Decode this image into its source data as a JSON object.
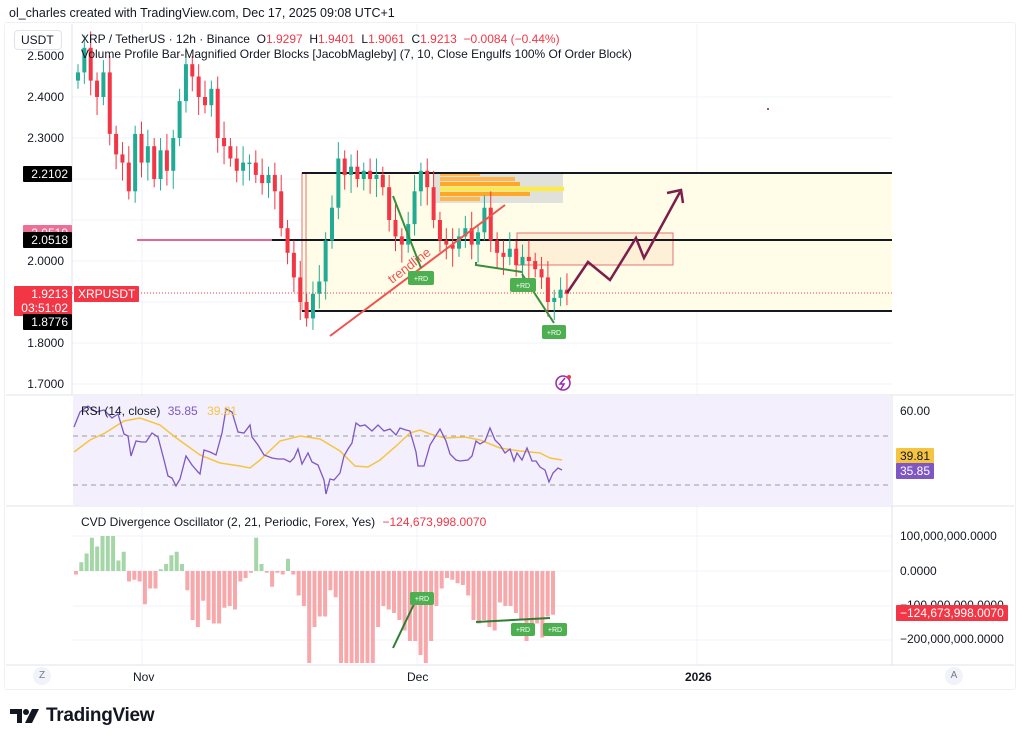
{
  "attribution": "ol_charles created with TradingView.com, Dec 17, 2025 09:08 UTC+1",
  "symbol_chip": "USDT",
  "legend": {
    "symbol": "XRP / TetherUS · 12h · Binance",
    "o_label": "O",
    "o": "1.9297",
    "h_label": "H",
    "h": "1.9401",
    "l_label": "L",
    "l": "1.9061",
    "c_label": "C",
    "c": "1.9213",
    "change": "−0.0084 (−0.44%)",
    "indicator": "Volume Profile Bar-Magnified Order Blocks [JacobMagleby] (7, 10, Close Engulfs 100% Of Order Block)"
  },
  "price_scale": {
    "ticks": [
      "2.5000",
      "2.4000",
      "2.3000",
      "2.2000",
      "2.1000",
      "2.0000",
      "1.9000",
      "1.8000",
      "1.7000"
    ],
    "labels": {
      "top_block": "2.2102",
      "pink_level": "2.0519",
      "mid_block": "2.0518",
      "last_price": "1.9213",
      "countdown": "03:51:02",
      "bottom_block": "1.8776",
      "symbol_tag": "XRPUSDT"
    }
  },
  "rsi": {
    "title": "RSI (14, close)",
    "value": "35.85",
    "ma_value": "39.81",
    "scale_top": "60.00",
    "label_ma": "39.81",
    "label_rsi": "35.85"
  },
  "cvd": {
    "title": "CVD Divergence Oscillator (2, 21, Periodic, Forex, Yes)",
    "value": "−124,673,998.0070",
    "scale": [
      "100,000,000.0000",
      "0.0000",
      "−100,000,000.0000",
      "−200,000,000.0000"
    ],
    "label": "−124,673,998.0070"
  },
  "time_axis": {
    "z": "Z",
    "nov": "Nov",
    "dec": "Dec",
    "y2026": "2026",
    "a": "A"
  },
  "annotations": {
    "trendline": "trendline",
    "rd": "+RD"
  },
  "logo": "TradingView",
  "colors": {
    "up": "#22ab94",
    "down": "#f23645",
    "rsi": "#7e57c2",
    "rsi_ma": "#f5c542",
    "forecast": "#7b1e4b",
    "rd": "#4caf50"
  },
  "chart_data": [
    {
      "type": "candlestick",
      "title": "XRP / TetherUS · 12h · Binance",
      "ylabel": "Price (USDT)",
      "ylim": [
        1.65,
        2.55
      ],
      "ohlc_last": {
        "open": 1.9297,
        "high": 1.9401,
        "low": 1.9061,
        "close": 1.9213,
        "change": -0.0084,
        "change_pct": -0.44
      },
      "approx_close_path": [
        2.46,
        2.52,
        2.44,
        2.4,
        2.46,
        2.31,
        2.26,
        2.24,
        2.17,
        2.31,
        2.24,
        2.28,
        2.2,
        2.27,
        2.22,
        2.3,
        2.39,
        2.48,
        2.45,
        2.4,
        2.38,
        2.42,
        2.3,
        2.28,
        2.25,
        2.22,
        2.24,
        2.24,
        2.21,
        2.19,
        2.21,
        2.17,
        2.08,
        2.02,
        1.96,
        1.9,
        1.86,
        1.92,
        1.95,
        2.05,
        2.13,
        2.25,
        2.21,
        2.23,
        2.2,
        2.22,
        2.2,
        2.21,
        2.18,
        2.1,
        2.06,
        2.04,
        2.09,
        2.17,
        2.22,
        2.18,
        2.1,
        2.05,
        2.04,
        2.03,
        2.06,
        2.08,
        2.04,
        2.07,
        2.13,
        2.05,
        2.02,
        2.01,
        2.03,
        1.99,
        2.01,
        2.0,
        1.98,
        1.96,
        1.9,
        1.91,
        1.93,
        1.92
      ],
      "levels": {
        "order_block_top": 2.2102,
        "order_block_mid": 2.0518,
        "order_block_bottom": 1.8776,
        "pink_level": 2.0519,
        "last": 1.9213
      },
      "annotations": [
        "trendline",
        "+RD",
        "+RD",
        "+RD",
        "forecast zigzag arrow"
      ]
    },
    {
      "type": "line",
      "title": "RSI (14, close)",
      "series": [
        {
          "name": "RSI",
          "last": 35.85
        },
        {
          "name": "RSI-based MA",
          "last": 39.81
        }
      ],
      "yticks": [
        "60.00"
      ],
      "bands": [
        70,
        30
      ]
    },
    {
      "type": "bar",
      "title": "CVD Divergence Oscillator (2, 21, Periodic, Forex, Yes)",
      "last": -124673998.007,
      "yticks": [
        100000000,
        0,
        -100000000,
        -200000000
      ],
      "approx_values_millions": [
        -10,
        25,
        50,
        95,
        70,
        100,
        100,
        100,
        30,
        55,
        -30,
        -25,
        -30,
        -95,
        -50,
        -50,
        5,
        20,
        45,
        55,
        20,
        -55,
        -140,
        -160,
        -85,
        -140,
        -150,
        -150,
        -105,
        -100,
        -110,
        -30,
        -20,
        -5,
        95,
        20,
        -5,
        -45,
        -5,
        -10,
        35,
        -10,
        -70,
        -100,
        -270,
        -160,
        -130,
        -130,
        -55,
        -75,
        -270,
        -270,
        -270,
        -270,
        -270,
        -270,
        -270,
        -160,
        -100,
        -110,
        -120,
        -140,
        -170,
        -200,
        -200,
        -240,
        -270,
        -200,
        -100,
        -50,
        -20,
        -25,
        -35,
        -40,
        -70,
        -140,
        -150,
        -140,
        -160,
        -170,
        -90,
        -100,
        -100,
        -120,
        -140,
        -200,
        -180,
        -150,
        -190,
        -130,
        -125
      ]
    }
  ]
}
